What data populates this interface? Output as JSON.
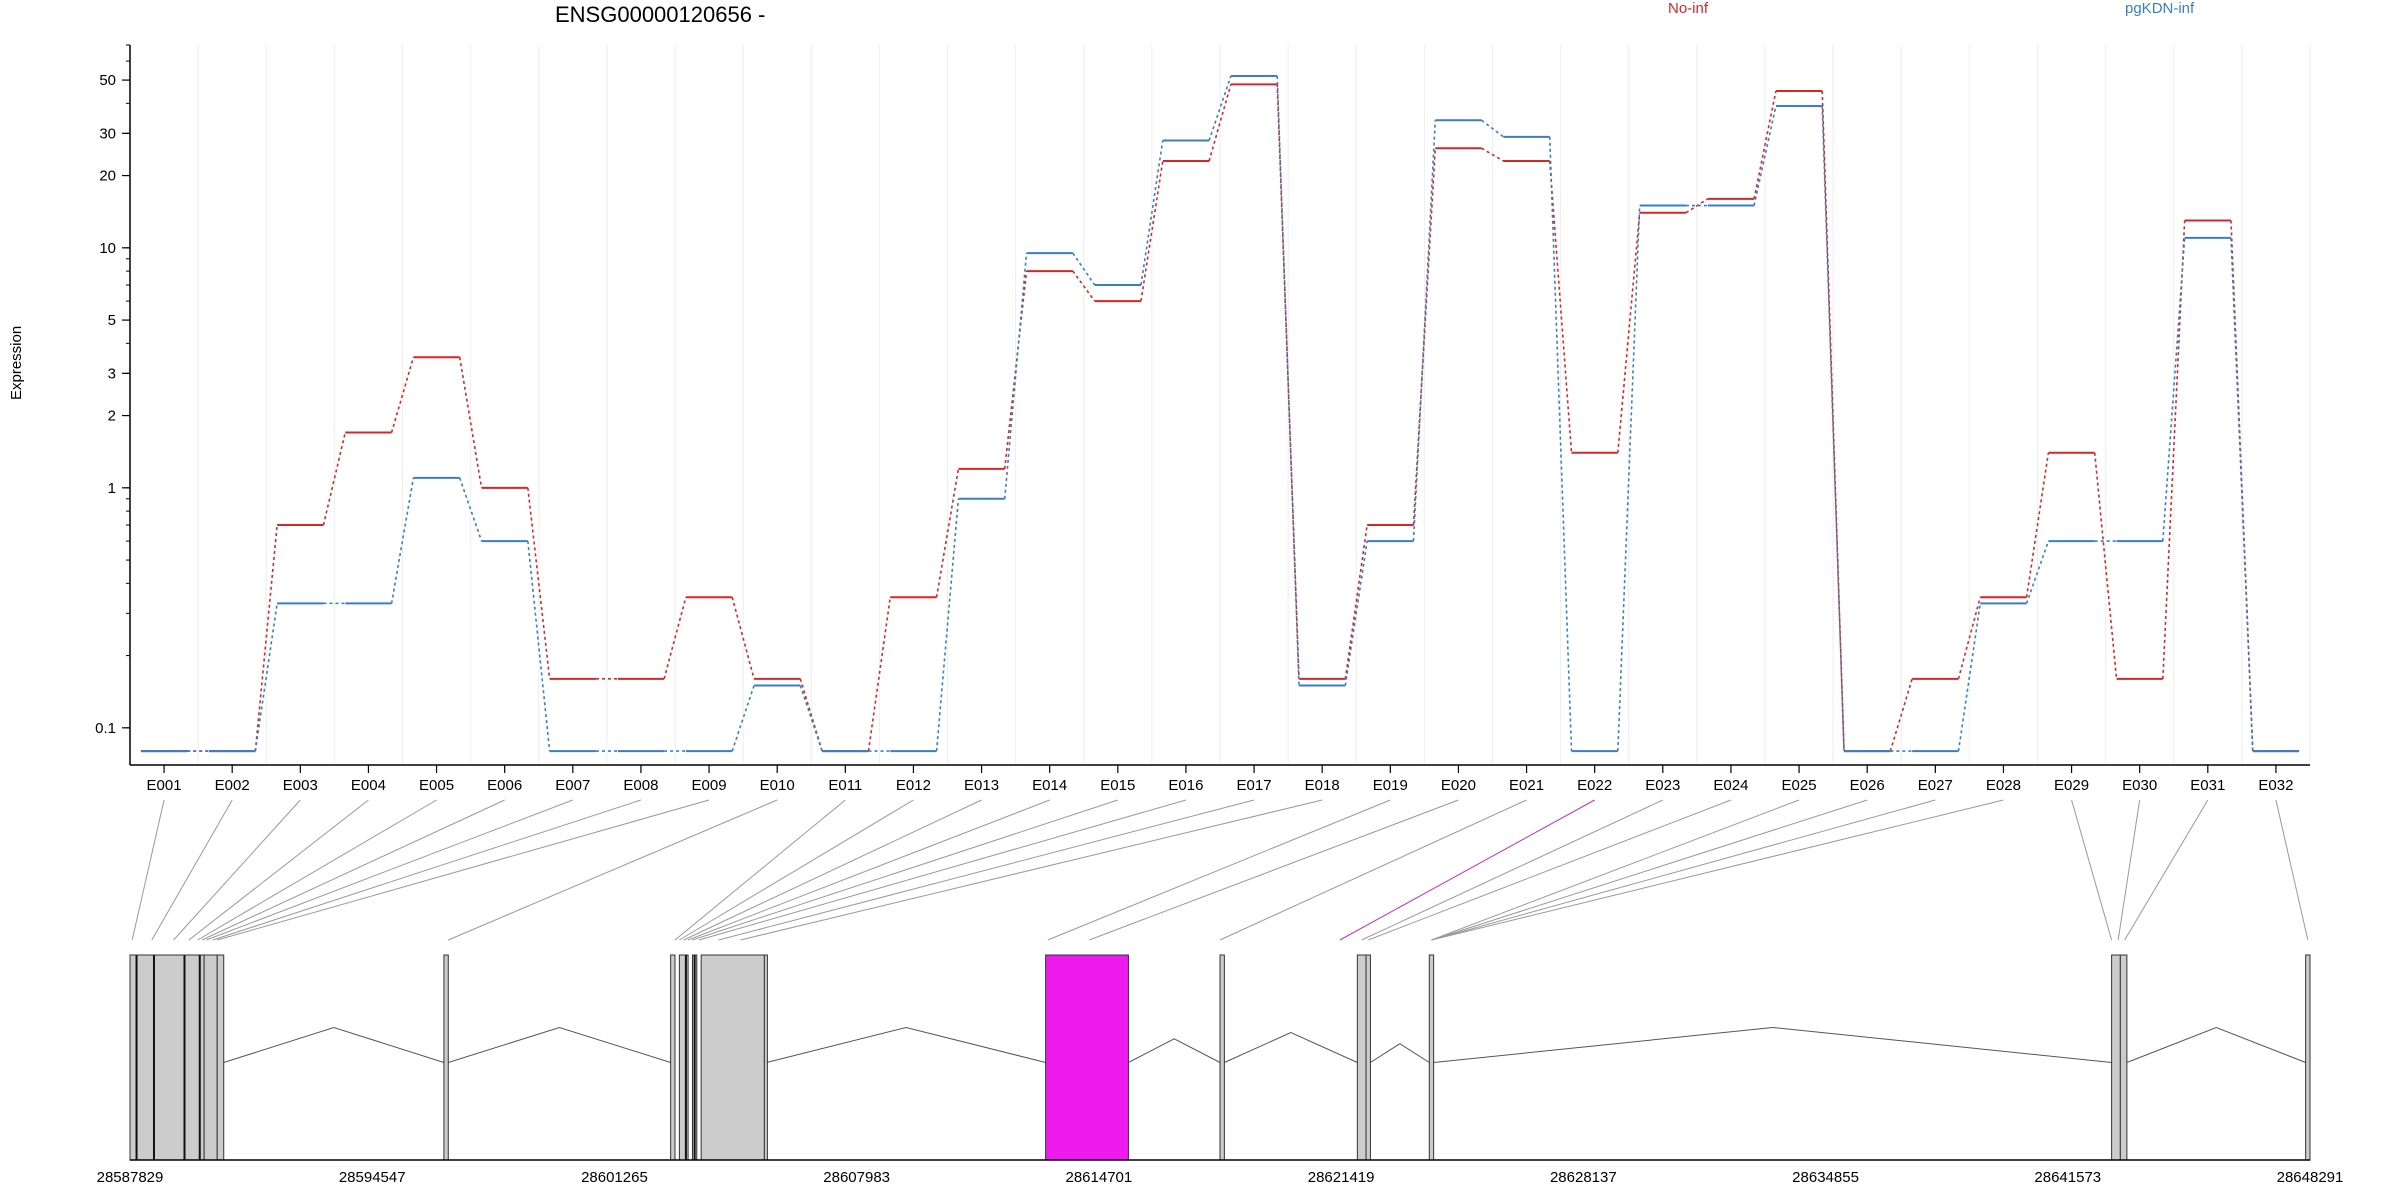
{
  "chart_data": {
    "type": "line",
    "title": "ENSG00000120656 -",
    "ylabel": "Expression",
    "yscale": "log",
    "ylim": [
      0.07,
      70
    ],
    "yticks": [
      0.1,
      1,
      2,
      3,
      5,
      10,
      20,
      30,
      50
    ],
    "ytick_labels": [
      "0.1",
      "1",
      "2",
      "3",
      "5",
      "10",
      "20",
      "30",
      "50"
    ],
    "categories": [
      "E001",
      "E002",
      "E003",
      "E004",
      "E005",
      "E006",
      "E007",
      "E008",
      "E009",
      "E010",
      "E011",
      "E012",
      "E013",
      "E014",
      "E015",
      "E016",
      "E017",
      "E018",
      "E019",
      "E020",
      "E021",
      "E022",
      "E023",
      "E024",
      "E025",
      "E026",
      "E027",
      "E028",
      "E029",
      "E030",
      "E031",
      "E032"
    ],
    "series": [
      {
        "name": "No-inf",
        "color": "#d62728",
        "values": [
          0.08,
          0.08,
          0.7,
          1.7,
          3.5,
          1.0,
          0.16,
          0.16,
          0.35,
          0.16,
          0.08,
          0.35,
          1.2,
          8.0,
          6.0,
          23,
          48,
          0.16,
          0.7,
          26,
          23,
          1.4,
          14,
          16,
          45,
          0.08,
          0.16,
          0.35,
          1.4,
          0.16,
          13,
          0.08
        ]
      },
      {
        "name": "pgKDN-inf",
        "color": "#3a7fc1",
        "values": [
          0.08,
          0.08,
          0.33,
          0.33,
          1.1,
          0.6,
          0.08,
          0.08,
          0.08,
          0.15,
          0.08,
          0.08,
          0.9,
          9.5,
          7.0,
          28,
          52,
          0.15,
          0.6,
          34,
          29,
          0.08,
          15,
          15,
          39,
          0.08,
          0.08,
          0.33,
          0.6,
          0.6,
          11,
          0.08
        ]
      }
    ],
    "gene_track": {
      "coord_ticks": [
        "28587829",
        "28594547",
        "28601265",
        "28607983",
        "28614701",
        "28621419",
        "28628137",
        "28634855",
        "28641573",
        "28648291"
      ],
      "highlight_exon": "E022",
      "highlight_color": "#ee1aee"
    }
  }
}
